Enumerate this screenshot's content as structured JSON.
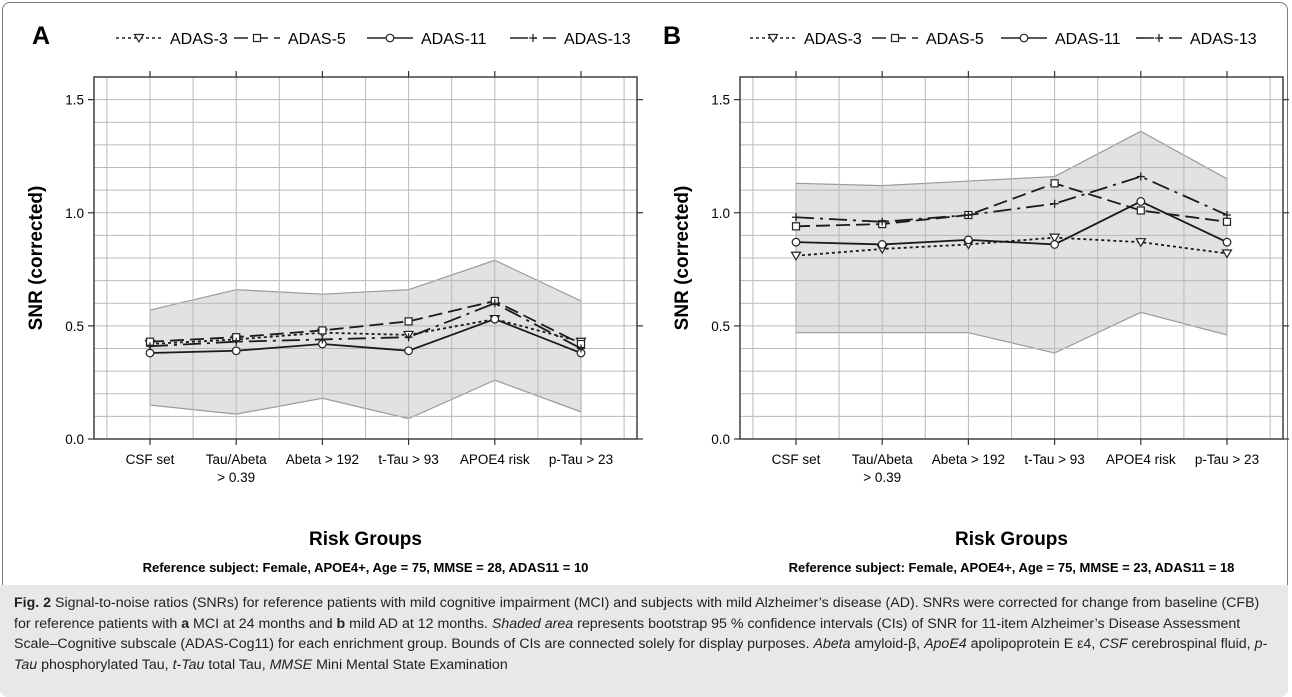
{
  "series_styles": {
    "ADAS-3": {
      "dash": "3,3",
      "marker": "triangle"
    },
    "ADAS-5": {
      "dash": "14,6",
      "marker": "square"
    },
    "ADAS-11": {
      "dash": "",
      "marker": "circle"
    },
    "ADAS-13": {
      "dash": "18,6,3,6",
      "marker": "plus"
    }
  },
  "chart_data": [
    {
      "panel": "A",
      "type": "line",
      "legend": [
        "ADAS-3",
        "ADAS-5",
        "ADAS-11",
        "ADAS-13"
      ],
      "legend_placement": "top",
      "categories": [
        "CSF set",
        "Tau/Abeta > 0.39",
        "Abeta > 192",
        "t-Tau > 93",
        "APOE4 risk",
        "p-Tau > 23"
      ],
      "category_lines": [
        [
          "CSF set"
        ],
        [
          "Tau/Abeta",
          "> 0.39"
        ],
        [
          "Abeta > 192"
        ],
        [
          "t-Tau > 93"
        ],
        [
          "APOE4 risk"
        ],
        [
          "p-Tau > 23"
        ]
      ],
      "xlabel": "Risk Groups",
      "ylabel": "SNR (corrected)",
      "subtitle": "Reference subject: Female, APOE4+, Age = 75, MMSE = 28, ADAS11 = 10",
      "ylim": [
        0,
        1.6
      ],
      "yticks": [
        "0.0",
        "0.5",
        "1.0",
        "1.5"
      ],
      "grid": true,
      "ci_band": {
        "lower": [
          0.15,
          0.11,
          0.18,
          0.09,
          0.26,
          0.12
        ],
        "upper": [
          0.57,
          0.66,
          0.64,
          0.66,
          0.79,
          0.61
        ]
      },
      "series": [
        {
          "name": "ADAS-3",
          "values": [
            0.42,
            0.44,
            0.47,
            0.46,
            0.53,
            0.43
          ]
        },
        {
          "name": "ADAS-5",
          "values": [
            0.43,
            0.45,
            0.48,
            0.52,
            0.61,
            0.42
          ]
        },
        {
          "name": "ADAS-11",
          "values": [
            0.38,
            0.39,
            0.42,
            0.39,
            0.53,
            0.38
          ]
        },
        {
          "name": "ADAS-13",
          "values": [
            0.41,
            0.43,
            0.44,
            0.45,
            0.6,
            0.4
          ]
        }
      ]
    },
    {
      "panel": "B",
      "type": "line",
      "legend": [
        "ADAS-3",
        "ADAS-5",
        "ADAS-11",
        "ADAS-13"
      ],
      "legend_placement": "top",
      "categories": [
        "CSF set",
        "Tau/Abeta > 0.39",
        "Abeta > 192",
        "t-Tau > 93",
        "APOE4 risk",
        "p-Tau > 23"
      ],
      "category_lines": [
        [
          "CSF set"
        ],
        [
          "Tau/Abeta",
          "> 0.39"
        ],
        [
          "Abeta > 192"
        ],
        [
          "t-Tau > 93"
        ],
        [
          "APOE4 risk"
        ],
        [
          "p-Tau > 23"
        ]
      ],
      "xlabel": "Risk Groups",
      "ylabel": "SNR (corrected)",
      "subtitle": "Reference subject: Female, APOE4+, Age = 75, MMSE = 23, ADAS11 = 18",
      "ylim": [
        0,
        1.6
      ],
      "yticks": [
        "0.0",
        "0.5",
        "1.0",
        "1.5"
      ],
      "grid": true,
      "ci_band": {
        "lower": [
          0.47,
          0.47,
          0.47,
          0.38,
          0.56,
          0.46
        ],
        "upper": [
          1.13,
          1.12,
          1.14,
          1.16,
          1.36,
          1.15
        ]
      },
      "series": [
        {
          "name": "ADAS-3",
          "values": [
            0.81,
            0.84,
            0.86,
            0.89,
            0.87,
            0.82
          ]
        },
        {
          "name": "ADAS-5",
          "values": [
            0.94,
            0.95,
            0.99,
            1.13,
            1.01,
            0.96
          ]
        },
        {
          "name": "ADAS-11",
          "values": [
            0.87,
            0.86,
            0.88,
            0.86,
            1.05,
            0.87
          ]
        },
        {
          "name": "ADAS-13",
          "values": [
            0.98,
            0.96,
            0.99,
            1.04,
            1.16,
            0.99
          ]
        }
      ]
    }
  ],
  "caption": {
    "fig_label": "Fig. 2",
    "s1": " Signal-to-noise ratios (SNRs) for reference patients with mild cognitive impairment (MCI) and subjects with mild Alzheimer’s disease (AD). SNRs were corrected for change from baseline (CFB) for reference patients with ",
    "a": "a",
    "s2": " MCI at 24 months and ",
    "b": "b",
    "s3": " mild AD at 12 months. ",
    "shaded": "Shaded area",
    "s4": " represents bootstrap 95 % confidence intervals (CIs) of SNR for 11-item Alzheimer’s Disease Assessment Scale–Cognitive subscale (ADAS-Cog11) for each enrichment group. Bounds of CIs are connected solely for display purposes. ",
    "abeta": "Abeta",
    "s5": " amyloid-β, ",
    "apoe4": "ApoE4",
    "s6": " apolipoprotein E ε4, ",
    "csf": "CSF",
    "s7": " cerebrospinal fluid, ",
    "ptau": "p-Tau",
    "s8": " phosphorylated Tau, ",
    "ttau": "t-Tau",
    "s9": " total Tau, ",
    "mmse": "MMSE",
    "s10": " Mini Mental State Examination"
  }
}
